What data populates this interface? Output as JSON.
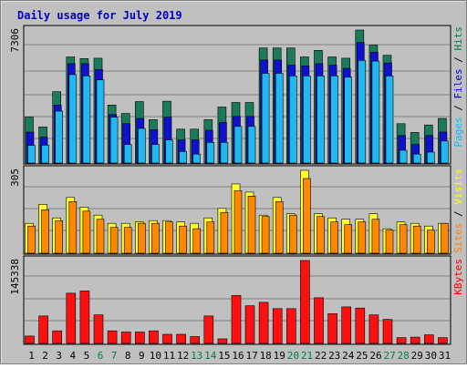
{
  "title": "Daily usage for July 2019",
  "y_max_labels": {
    "top": "7306",
    "mid": "305",
    "bottom": "145338"
  },
  "legend": {
    "top": [
      {
        "text": "Pages",
        "color": "#00c0ff"
      },
      {
        "text": " / ",
        "color": "#000000"
      },
      {
        "text": "Files",
        "color": "#0000e0"
      },
      {
        "text": " / ",
        "color": "#000000"
      },
      {
        "text": "Hits",
        "color": "#008040"
      }
    ],
    "mid": [
      {
        "text": "Sites",
        "color": "#ff8000"
      },
      {
        "text": " / ",
        "color": "#000000"
      },
      {
        "text": "Visits",
        "color": "#ffff00"
      }
    ],
    "bottom": [
      {
        "text": "KBytes",
        "color": "#ff0000"
      }
    ]
  },
  "colors": {
    "hits": "#1a7a5a",
    "files": "#1010d0",
    "pages": "#20b8f0",
    "visits": "#ffff30",
    "sites": "#ff8800",
    "kbytes": "#ff1010",
    "title": "#0000c0",
    "weekday": "#000000",
    "weekend": "#008040"
  },
  "chart_data": {
    "type": "bar",
    "title": "Daily usage for July 2019",
    "categories": [
      "1",
      "2",
      "3",
      "4",
      "5",
      "6",
      "7",
      "8",
      "9",
      "10",
      "11",
      "12",
      "13",
      "14",
      "15",
      "16",
      "17",
      "18",
      "19",
      "20",
      "21",
      "22",
      "23",
      "24",
      "25",
      "26",
      "27",
      "28",
      "29",
      "30",
      "31"
    ],
    "weekend_days": [
      "6",
      "7",
      "13",
      "14",
      "20",
      "21",
      "27",
      "28"
    ],
    "panels": [
      {
        "ymax": 7306,
        "series": [
          {
            "name": "Hits",
            "values": [
              2520,
              1980,
              3920,
              5830,
              5740,
              5760,
              3190,
              2720,
              3380,
              2380,
              3400,
              1860,
              1860,
              2380,
              3080,
              3330,
              3330,
              6320,
              6320,
              6320,
              5830,
              6190,
              5830,
              5760,
              7306,
              6480,
              5920,
              2160,
              1680,
              2090,
              2450
            ]
          },
          {
            "name": "Files",
            "values": [
              1700,
              1420,
              3190,
              5460,
              5460,
              5140,
              2660,
              2160,
              2450,
              1830,
              2520,
              1270,
              1270,
              1800,
              2230,
              2560,
              2560,
              5660,
              5660,
              5380,
              5340,
              5460,
              5380,
              5200,
              6620,
              6080,
              5500,
              1510,
              1020,
              1510,
              1700
            ]
          },
          {
            "name": "Pages",
            "values": [
              970,
              980,
              2850,
              4860,
              4790,
              4570,
              2520,
              1020,
              1900,
              1020,
              1270,
              630,
              490,
              1130,
              1130,
              2010,
              2010,
              4930,
              4930,
              4790,
              4790,
              4790,
              4790,
              4720,
              5640,
              5600,
              4790,
              700,
              490,
              600,
              1210
            ]
          }
        ]
      },
      {
        "ymax": 305,
        "series": [
          {
            "name": "Visits",
            "values": [
              110,
              180,
              130,
              205,
              170,
              140,
              110,
              110,
              115,
              120,
              120,
              115,
              110,
              130,
              165,
              255,
              225,
              140,
              205,
              145,
              305,
              145,
              130,
              125,
              125,
              145,
              90,
              115,
              110,
              100,
              110
            ]
          },
          {
            "name": "Sites",
            "values": [
              100,
              160,
              120,
              190,
              155,
              125,
              95,
              95,
              110,
              110,
              115,
              100,
              90,
              115,
              150,
              230,
              210,
              135,
              190,
              140,
              275,
              135,
              115,
              105,
              115,
              125,
              85,
              105,
              100,
              85,
              110
            ]
          }
        ]
      },
      {
        "ymax": 145338,
        "series": [
          {
            "name": "KBytes",
            "values": [
              13000,
              48000,
              22000,
              88000,
              92000,
              50000,
              22000,
              20000,
              20000,
              22000,
              16000,
              16000,
              12000,
              48000,
              8000,
              84000,
              66000,
              72000,
              61000,
              61000,
              145338,
              80000,
              52000,
              64000,
              62000,
              50000,
              42000,
              10000,
              11000,
              15000,
              10000
            ]
          }
        ]
      }
    ]
  }
}
